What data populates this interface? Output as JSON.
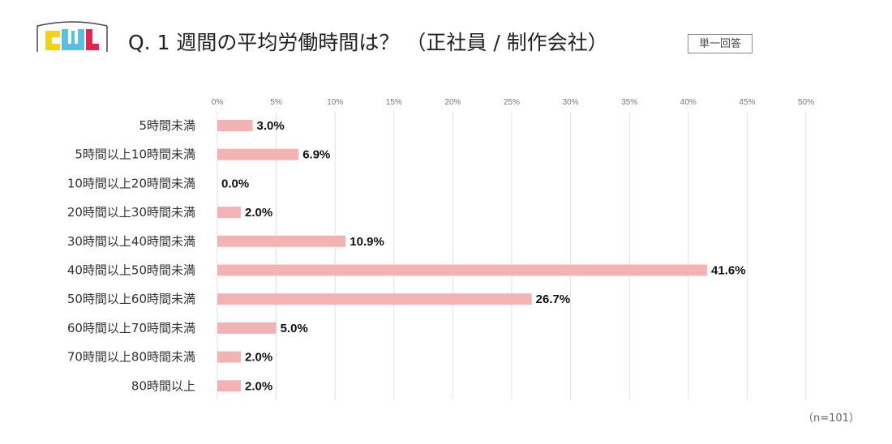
{
  "logo": {
    "text": "CWL"
  },
  "title": "Q. 1 週間の平均労働時間は？ （正社員 / 制作会社）",
  "badge": "単一回答",
  "note": "（n=101）",
  "colors": {
    "bar": "#F4B3B3",
    "grid": "#E2E2E2",
    "logo_yellow": "#F2D21B",
    "logo_blue": "#5BC0DE",
    "logo_red": "#E2264D"
  },
  "chart_data": {
    "type": "bar",
    "orientation": "horizontal",
    "categories": [
      "5時間未満",
      "5時間以上10時間未満",
      "10時間以上20時間未満",
      "20時間以上30時間未満",
      "30時間以上40時間未満",
      "40時間以上50時間未満",
      "50時間以上60時間未満",
      "60時間以上70時間未満",
      "70時間以上80時間未満",
      "80時間以上"
    ],
    "values": [
      3.0,
      6.9,
      0.0,
      2.0,
      10.9,
      41.6,
      26.7,
      5.0,
      2.0,
      2.0
    ],
    "value_labels": [
      "3.0%",
      "6.9%",
      "0.0%",
      "2.0%",
      "10.9%",
      "41.6%",
      "26.7%",
      "5.0%",
      "2.0%",
      "2.0%"
    ],
    "xlim": [
      0,
      50
    ],
    "xticks": [
      "0%",
      "5%",
      "10%",
      "15%",
      "20%",
      "25%",
      "30%",
      "35%",
      "40%",
      "45%",
      "50%"
    ],
    "grid": true,
    "legend": "none"
  }
}
